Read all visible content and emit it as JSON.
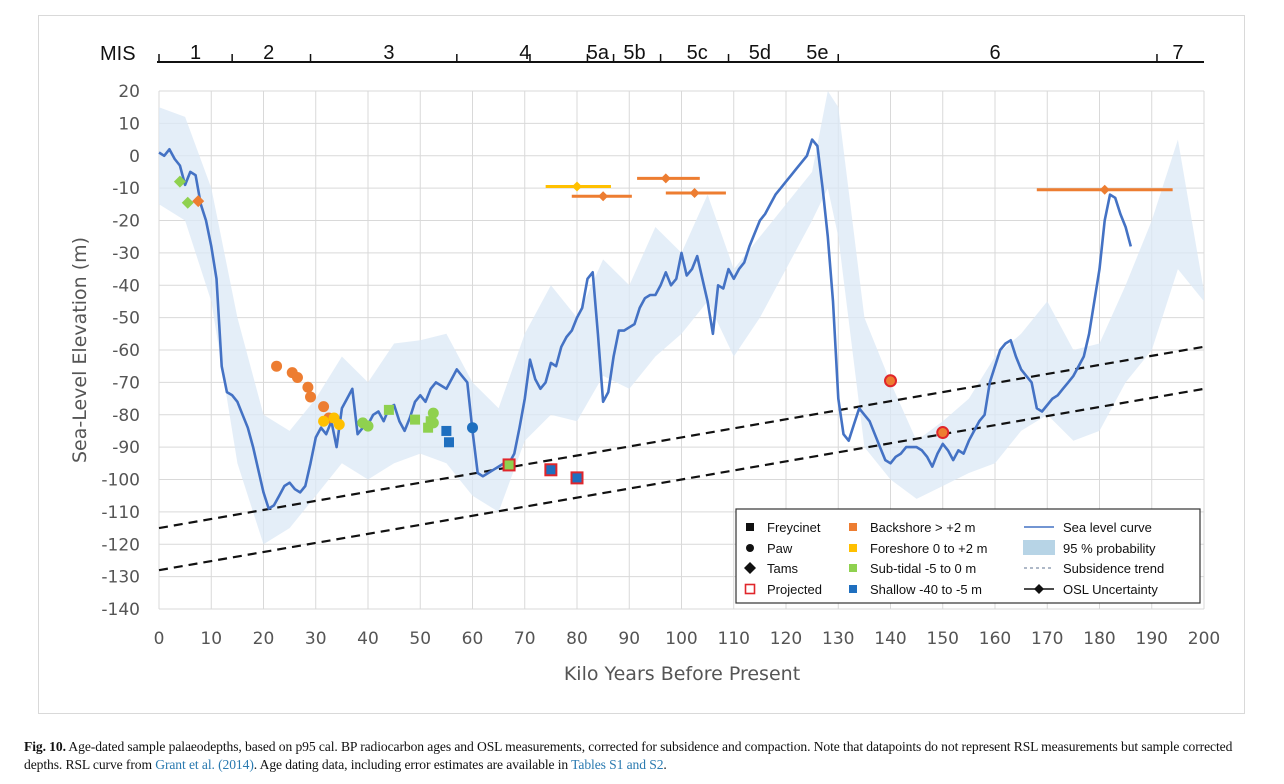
{
  "chart_data": {
    "type": "line",
    "title": "",
    "xlabel": "Kilo Years Before Present",
    "ylabel": "Sea-Level Elevation (m)",
    "xlim": [
      0,
      200
    ],
    "ylim": [
      -140,
      20
    ],
    "grid": true,
    "x_ticks": [
      "0",
      "10",
      "20",
      "30",
      "40",
      "50",
      "60",
      "70",
      "80",
      "90",
      "100",
      "110",
      "120",
      "130",
      "140",
      "150",
      "160",
      "170",
      "180",
      "190",
      "200"
    ],
    "y_ticks": [
      "20",
      "10",
      "0",
      "-10",
      "-20",
      "-30",
      "-40",
      "-50",
      "-60",
      "-70",
      "-80",
      "-90",
      "-100",
      "-110",
      "-120",
      "-130",
      "-140"
    ],
    "mis": {
      "label": "MIS",
      "boundaries": [
        0,
        14,
        29,
        57,
        71,
        82,
        87,
        96,
        109,
        130,
        191,
        200
      ],
      "stages": [
        {
          "label": "1",
          "x": 7
        },
        {
          "label": "2",
          "x": 21
        },
        {
          "label": "3",
          "x": 44
        },
        {
          "label": "4",
          "x": 70
        },
        {
          "label": "5a",
          "x": 84
        },
        {
          "label": "5b",
          "x": 91
        },
        {
          "label": "5c",
          "x": 103
        },
        {
          "label": "5d",
          "x": 115
        },
        {
          "label": "5e",
          "x": 126
        },
        {
          "label": "6",
          "x": 160
        },
        {
          "label": "7",
          "x": 195
        }
      ]
    },
    "sea_level_curve": {
      "name": "Sea level curve",
      "color": "#4472c4",
      "x": [
        0,
        1,
        2,
        3,
        4,
        5,
        6,
        7,
        8,
        9,
        10,
        11,
        12,
        13,
        14,
        15,
        16,
        17,
        18,
        19,
        20,
        21,
        22,
        23,
        24,
        25,
        26,
        27,
        28,
        29,
        30,
        31,
        32,
        33,
        34,
        35,
        36,
        37,
        38,
        39,
        40,
        41,
        42,
        43,
        44,
        45,
        46,
        47,
        48,
        49,
        50,
        51,
        52,
        53,
        54,
        55,
        56,
        57,
        58,
        59,
        60,
        61,
        62,
        63,
        64,
        65,
        66,
        67,
        68,
        69,
        70,
        71,
        72,
        73,
        74,
        75,
        76,
        77,
        78,
        79,
        80,
        81,
        82,
        83,
        84,
        85,
        86,
        87,
        88,
        89,
        90,
        91,
        92,
        93,
        94,
        95,
        96,
        97,
        98,
        99,
        100,
        101,
        102,
        103,
        104,
        105,
        106,
        107,
        108,
        109,
        110,
        111,
        112,
        113,
        114,
        115,
        116,
        117,
        118,
        119,
        120,
        121,
        122,
        123,
        124,
        125,
        126,
        127,
        128,
        129,
        130,
        131,
        132,
        133,
        134,
        135,
        136,
        137,
        138,
        139,
        140,
        141,
        142,
        143,
        144,
        145,
        146,
        147,
        148,
        149,
        150,
        151,
        152,
        153,
        154,
        155,
        156,
        157,
        158,
        159,
        160,
        161,
        162,
        163,
        164,
        165,
        166,
        167,
        168,
        169,
        170,
        171,
        172,
        173,
        174,
        175,
        176,
        177,
        178,
        179,
        180,
        181,
        182,
        183,
        184,
        185,
        186,
        187,
        188,
        189,
        190,
        191,
        192,
        193,
        194,
        195,
        196,
        197,
        198,
        199,
        200
      ],
      "y": [
        1,
        0,
        2,
        -1,
        -3,
        -9,
        -5,
        -6,
        -15,
        -20,
        -28,
        -38,
        -65,
        -73,
        -74,
        -76,
        -80,
        -84,
        -90,
        -97,
        -104,
        -109,
        -108,
        -105,
        -102,
        -101,
        -103,
        -104,
        -102,
        -95,
        -87,
        -84,
        -86,
        -82,
        -90,
        -78,
        -75,
        -72,
        -86,
        -84,
        -83,
        -80,
        -79,
        -82,
        -78,
        -77,
        -82,
        -85,
        -81,
        -76,
        -74,
        -76,
        -72,
        -70,
        -71,
        -72,
        -69,
        -66,
        -68,
        -70,
        -85,
        -98,
        -99,
        -98,
        -97,
        -96,
        -95,
        -95,
        -92,
        -84,
        -75,
        -63,
        -69,
        -72,
        -70,
        -64,
        -65,
        -59,
        -56,
        -54,
        -50,
        -47,
        -38,
        -36,
        -55,
        -76,
        -73,
        -62,
        -54,
        -54,
        -53,
        -52,
        -47,
        -44,
        -43,
        -43,
        -40,
        -36,
        -40,
        -38,
        -30,
        -37,
        -35,
        -31,
        -38,
        -45,
        -55,
        -40,
        -41,
        -35,
        -38,
        -35,
        -33,
        -28,
        -24,
        -20,
        -18,
        -15,
        -12,
        -10,
        -8,
        -6,
        -4,
        -2,
        0,
        5,
        3,
        -10,
        -25,
        -45,
        -75,
        -86,
        -88,
        -83,
        -78,
        -80,
        -82,
        -86,
        -90,
        -94,
        -95,
        -93,
        -92,
        -90,
        -90,
        -90,
        -91,
        -93,
        -96,
        -92,
        -89,
        -91,
        -94,
        -91,
        -92,
        -88,
        -85,
        -82,
        -80,
        -70,
        -65,
        -60,
        -58,
        -57,
        -62,
        -66,
        -68,
        -70,
        -78,
        -79,
        -77,
        -75,
        -74,
        -72,
        -70,
        -68,
        -65,
        -62,
        -55,
        -45,
        -35,
        -20,
        -12,
        -13,
        -18,
        -22,
        -28
      ]
    },
    "probability_band": {
      "name": "95 % probability",
      "color": "#dbe8f6",
      "x": [
        0,
        5,
        10,
        15,
        20,
        25,
        30,
        35,
        40,
        45,
        50,
        55,
        60,
        65,
        70,
        75,
        80,
        85,
        90,
        95,
        100,
        105,
        110,
        115,
        120,
        125,
        128,
        130,
        135,
        140,
        145,
        150,
        155,
        160,
        165,
        170,
        175,
        180,
        185,
        190,
        195,
        200
      ],
      "upper": [
        15,
        12,
        -10,
        -50,
        -80,
        -85,
        -75,
        -62,
        -70,
        -58,
        -57,
        -55,
        -70,
        -78,
        -55,
        -40,
        -50,
        -32,
        -40,
        -22,
        -30,
        -12,
        -35,
        -25,
        -15,
        -5,
        20,
        15,
        -50,
        -70,
        -88,
        -82,
        -75,
        -62,
        -55,
        -45,
        -60,
        -58,
        -40,
        -20,
        5,
        -42
      ],
      "lower": [
        -15,
        -20,
        -45,
        -95,
        -120,
        -115,
        -105,
        -95,
        -100,
        -95,
        -92,
        -95,
        -105,
        -110,
        -88,
        -80,
        -82,
        -68,
        -72,
        -62,
        -55,
        -45,
        -62,
        -50,
        -35,
        -20,
        -10,
        -25,
        -90,
        -100,
        -106,
        -102,
        -98,
        -95,
        -85,
        -80,
        -88,
        -85,
        -70,
        -60,
        -35,
        -45
      ]
    },
    "subsidence_trend": [
      {
        "x": [
          0,
          200
        ],
        "y": [
          -115,
          -59
        ]
      },
      {
        "x": [
          0,
          200
        ],
        "y": [
          -128,
          -72
        ]
      }
    ],
    "samples": [
      {
        "site": "Tams",
        "category": "Sub-tidal -5 to 0 m",
        "x": 4,
        "y": -8
      },
      {
        "site": "Tams",
        "category": "Sub-tidal -5 to 0 m",
        "x": 5.5,
        "y": -14.5
      },
      {
        "site": "Tams",
        "category": "Backshore > +2 m",
        "x": 7.5,
        "y": -14
      },
      {
        "site": "Paw",
        "category": "Backshore > +2 m",
        "x": 22.5,
        "y": -65
      },
      {
        "site": "Paw",
        "category": "Backshore > +2 m",
        "x": 25.5,
        "y": -67
      },
      {
        "site": "Paw",
        "category": "Backshore > +2 m",
        "x": 26.5,
        "y": -68.5
      },
      {
        "site": "Paw",
        "category": "Backshore > +2 m",
        "x": 28.5,
        "y": -71.5
      },
      {
        "site": "Paw",
        "category": "Backshore > +2 m",
        "x": 29,
        "y": -74.5
      },
      {
        "site": "Paw",
        "category": "Backshore > +2 m",
        "x": 31.5,
        "y": -77.5
      },
      {
        "site": "Paw",
        "category": "Backshore > +2 m",
        "x": 32.5,
        "y": -81
      },
      {
        "site": "Paw",
        "category": "Foreshore 0 to +2 m",
        "x": 31.5,
        "y": -82
      },
      {
        "site": "Paw",
        "category": "Foreshore 0 to +2 m",
        "x": 33.5,
        "y": -81
      },
      {
        "site": "Paw",
        "category": "Foreshore 0 to +2 m",
        "x": 34.5,
        "y": -83
      },
      {
        "site": "Paw",
        "category": "Sub-tidal -5 to 0 m",
        "x": 39,
        "y": -82.5
      },
      {
        "site": "Paw",
        "category": "Sub-tidal -5 to 0 m",
        "x": 40,
        "y": -83.5
      },
      {
        "site": "Freycinet",
        "category": "Sub-tidal -5 to 0 m",
        "x": 44,
        "y": -78.5
      },
      {
        "site": "Freycinet",
        "category": "Sub-tidal -5 to 0 m",
        "x": 49,
        "y": -81.5
      },
      {
        "site": "Freycinet",
        "category": "Sub-tidal -5 to 0 m",
        "x": 51.5,
        "y": -84
      },
      {
        "site": "Freycinet",
        "category": "Sub-tidal -5 to 0 m",
        "x": 52,
        "y": -82
      },
      {
        "site": "Paw",
        "category": "Sub-tidal -5 to 0 m",
        "x": 52.5,
        "y": -79.5
      },
      {
        "site": "Paw",
        "category": "Sub-tidal -5 to 0 m",
        "x": 52.5,
        "y": -82.5
      },
      {
        "site": "Freycinet",
        "category": "Shallow -40 to -5 m",
        "x": 55,
        "y": -85
      },
      {
        "site": "Freycinet",
        "category": "Shallow -40 to -5 m",
        "x": 55.5,
        "y": -88.5
      },
      {
        "site": "Paw",
        "category": "Shallow -40 to -5 m",
        "x": 60,
        "y": -84
      },
      {
        "site": "Freycinet",
        "category": "Sub-tidal -5 to 0 m",
        "projected": true,
        "x": 67,
        "y": -95.5
      },
      {
        "site": "Freycinet",
        "category": "Shallow -40 to -5 m",
        "projected": true,
        "x": 75,
        "y": -97
      },
      {
        "site": "Freycinet",
        "category": "Shallow -40 to -5 m",
        "projected": true,
        "x": 80,
        "y": -99.5
      },
      {
        "site": "Paw",
        "category": "Backshore > +2 m",
        "projected": true,
        "x": 140,
        "y": -69.5
      },
      {
        "site": "Paw",
        "category": "Backshore > +2 m",
        "projected": true,
        "x": 150,
        "y": -85.5
      }
    ],
    "osl_samples": [
      {
        "site": "Tams",
        "category": "Foreshore 0 to +2 m",
        "x": 80,
        "xmin": 74,
        "xmax": 86.5,
        "y": -9.5
      },
      {
        "site": "Tams",
        "category": "Backshore > +2 m",
        "x": 85,
        "xmin": 79,
        "xmax": 90.5,
        "y": -12.5
      },
      {
        "site": "Tams",
        "category": "Backshore > +2 m",
        "x": 97,
        "xmin": 91.5,
        "xmax": 103.5,
        "y": -7
      },
      {
        "site": "Tams",
        "category": "Backshore > +2 m",
        "x": 102.5,
        "xmin": 97,
        "xmax": 108.5,
        "y": -11.5
      },
      {
        "site": "Tams",
        "category": "Backshore > +2 m",
        "x": 181,
        "xmin": 168,
        "xmax": 194,
        "y": -10.5
      }
    ],
    "category_colors": {
      "Backshore > +2 m": "#ed7d31",
      "Foreshore 0 to +2 m": "#ffc000",
      "Sub-tidal -5 to 0 m": "#8fd14f",
      "Shallow -40 to -5 m": "#1f6fbf"
    },
    "projected_color": "#e0262b",
    "legend": {
      "placement": "bottom-right",
      "sites": [
        {
          "label": "Freycinet",
          "marker": "square"
        },
        {
          "label": "Paw",
          "marker": "circle"
        },
        {
          "label": "Tams",
          "marker": "diamond"
        },
        {
          "label": "Projected",
          "marker": "open-square"
        }
      ],
      "categories": [
        {
          "label": "Backshore > +2 m",
          "color": "#ed7d31"
        },
        {
          "label": "Foreshore 0 to +2 m",
          "color": "#ffc000"
        },
        {
          "label": "Sub-tidal -5 to 0 m",
          "color": "#8fd14f"
        },
        {
          "label": "Shallow -40 to -5 m",
          "color": "#1f6fbf"
        }
      ],
      "series": [
        {
          "label": "Sea level curve",
          "style": "line"
        },
        {
          "label": "95 % probability",
          "style": "band"
        },
        {
          "label": "Subsidence trend",
          "style": "dashed"
        },
        {
          "label": "OSL Uncertainty",
          "style": "errorbar"
        }
      ]
    }
  },
  "caption": {
    "label": "Fig. 10.",
    "text_1": " Age-dated sample palaeodepths, based on p95 cal. BP radiocarbon ages and OSL measurements, corrected for subsidence and compaction. Note that datapoints do not represent RSL measurements but sample corrected depths. RSL curve from ",
    "link_1": "Grant et al. (2014)",
    "text_2": ". Age dating data, including error estimates are available in ",
    "link_2": "Tables S1 and S2",
    "text_3": "."
  }
}
